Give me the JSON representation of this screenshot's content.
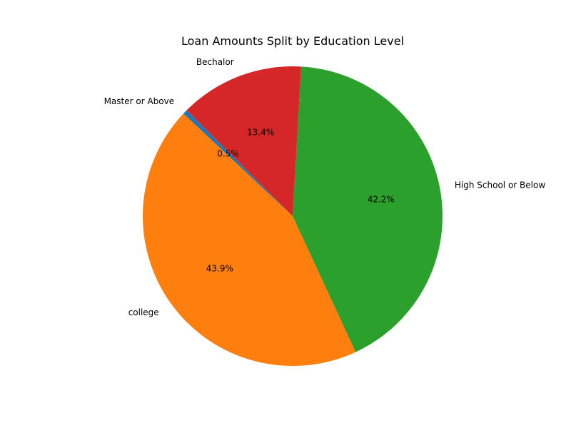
{
  "chart_data": {
    "type": "pie",
    "title": "Loan Amounts Split by Education Level",
    "slices": [
      {
        "label": "Master or Above",
        "value": 0.5,
        "pct_label": "0.5%",
        "color": "#1f77b4"
      },
      {
        "label": "college",
        "value": 43.9,
        "pct_label": "43.9%",
        "color": "#ff7f0e"
      },
      {
        "label": "High School or Below",
        "value": 42.2,
        "pct_label": "42.2%",
        "color": "#2ca02c"
      },
      {
        "label": "Bechalor",
        "value": 13.4,
        "pct_label": "13.4%",
        "color": "#d62728"
      }
    ],
    "start_angle_deg": 135,
    "direction": "counterclockwise"
  }
}
